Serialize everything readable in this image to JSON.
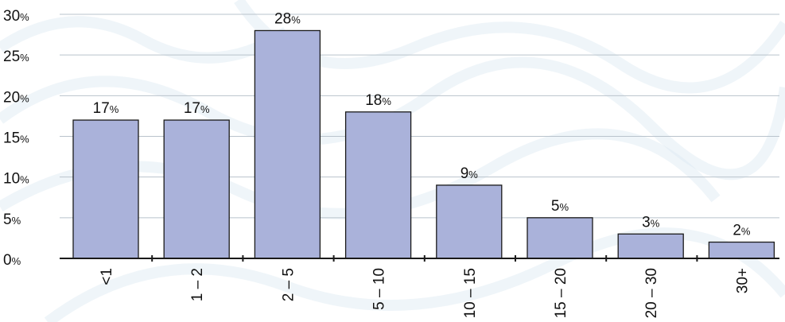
{
  "chart_data": {
    "type": "bar",
    "categories": [
      "<1",
      "1 – 2",
      "2 – 5",
      "5 – 10",
      "10 – 15",
      "15 – 20",
      "20 – 30",
      "30+"
    ],
    "values": [
      17,
      17,
      28,
      18,
      9,
      5,
      3,
      2
    ],
    "value_labels": [
      "17",
      "17",
      "28",
      "18",
      "9",
      "5",
      "3",
      "2"
    ],
    "value_suffix": "%",
    "y_tick_labels": [
      "0",
      "5",
      "10",
      "15",
      "20",
      "25",
      "30"
    ],
    "y_tick_suffix": "%",
    "ylim": [
      0,
      30
    ],
    "grid": true,
    "colors": {
      "bar": "#aab2da",
      "bar_stroke": "#1a1a1a",
      "grid": "#b9c3cc",
      "background_pattern": "#dbe8f1"
    }
  }
}
